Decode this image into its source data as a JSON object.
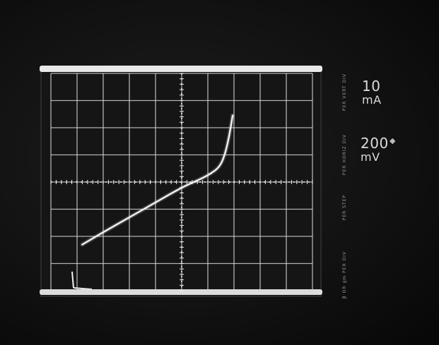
{
  "photo": {
    "subject": "oscilloscope screen with curve trace"
  },
  "scope": {
    "graticule_columns": 10,
    "graticule_rows": 8,
    "trace": [
      [
        -3.8,
        -2.3
      ],
      [
        -3.0,
        -1.85
      ],
      [
        -2.0,
        -1.3
      ],
      [
        -1.0,
        -0.75
      ],
      [
        0.0,
        -0.2
      ],
      [
        0.7,
        0.1
      ],
      [
        1.1,
        0.3
      ],
      [
        1.45,
        0.55
      ],
      [
        1.65,
        1.0
      ],
      [
        1.8,
        1.6
      ],
      [
        1.95,
        2.45
      ]
    ],
    "colors": {
      "trace": "#f2f2f2",
      "grid": "#d8d8d8",
      "background": "#151515"
    }
  },
  "readouts": {
    "vertical": {
      "value": "10",
      "unit": "mA"
    },
    "horizontal": {
      "value": "200",
      "unit": "mV"
    },
    "label_1": "PER VERT DIV",
    "label_2": "PER HORIZ DIV",
    "label_3": "PER STEP",
    "label_4": "β OR gm PER DIV"
  }
}
